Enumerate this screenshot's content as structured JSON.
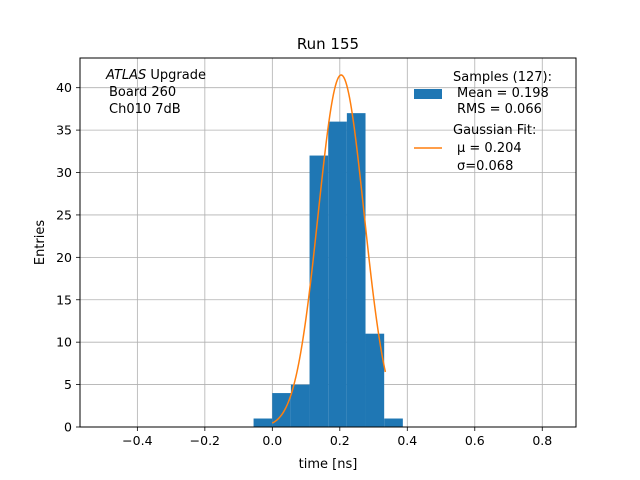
{
  "chart_data": {
    "type": "bar",
    "title": "Run 155",
    "xlabel": "time [ns]",
    "ylabel": "Entries",
    "xlim": [
      -0.57,
      0.9
    ],
    "ylim": [
      0,
      43.5
    ],
    "grid": true,
    "x_ticks": [
      -0.4,
      -0.2,
      0.0,
      0.2,
      0.4,
      0.6,
      0.8
    ],
    "x_tick_labels": [
      "−0.4",
      "−0.2",
      "0.0",
      "0.2",
      "0.4",
      "0.6",
      "0.8"
    ],
    "y_ticks": [
      0,
      5,
      10,
      15,
      20,
      25,
      30,
      35,
      40
    ],
    "y_tick_labels": [
      "0",
      "5",
      "10",
      "15",
      "20",
      "25",
      "30",
      "35",
      "40"
    ],
    "annotation": {
      "line1_italic": "ATLAS",
      "line1_rest": " Upgrade",
      "line2": "Board 260",
      "line3": "Ch010 7dB"
    },
    "histogram": {
      "name": "Samples (127):",
      "color": "#1f77b4",
      "bin_edges": [
        -0.0556,
        -0.0003,
        0.055,
        0.1103,
        0.1656,
        0.2209,
        0.2762,
        0.3315,
        0.3868
      ],
      "counts": [
        1,
        4,
        5,
        32,
        36,
        37,
        11,
        1
      ],
      "stats": [
        "Mean = 0.198",
        "RMS = 0.066"
      ]
    },
    "fit": {
      "name": "Gaussian Fit:",
      "color": "#ff7f0e",
      "mu": 0.204,
      "sigma": 0.068,
      "amplitude": 41.5,
      "x_range": [
        0.0,
        0.335
      ],
      "stats": [
        "μ = 0.204",
        "σ=0.068"
      ]
    },
    "legend_position": "top-right"
  }
}
